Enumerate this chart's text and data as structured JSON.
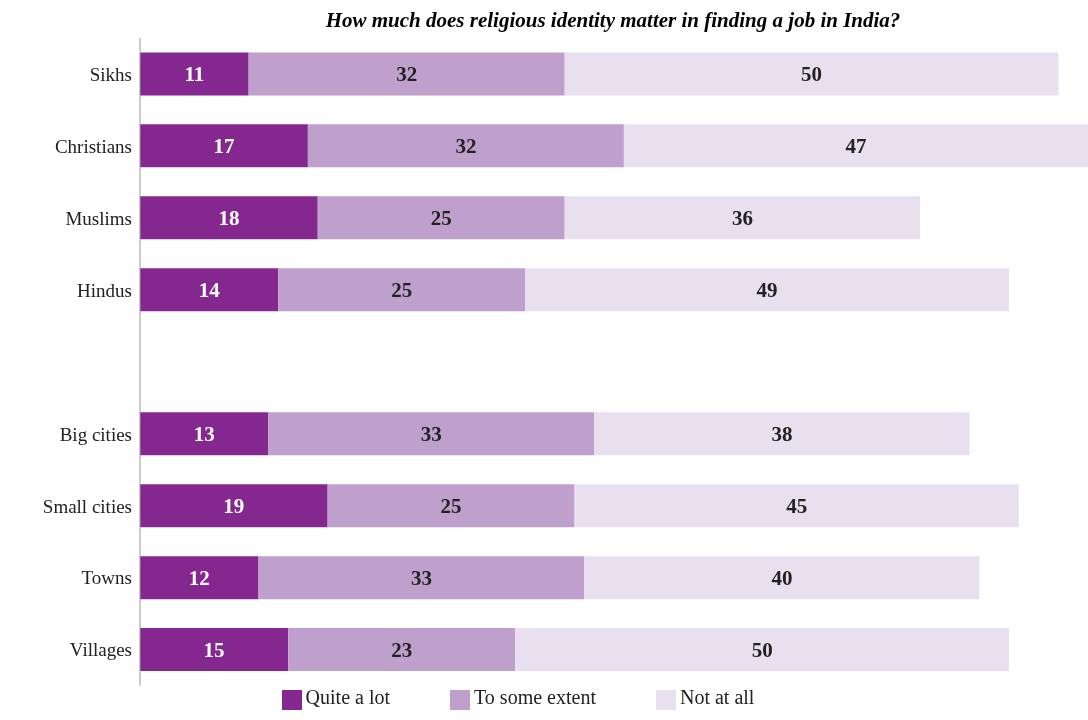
{
  "chart_data": {
    "type": "bar",
    "orientation": "horizontal",
    "stacked": true,
    "title": "How much does religious identity matter in finding a job in India?",
    "categories": [
      "Sikhs",
      "Christians",
      "Muslims",
      "Hindus",
      null,
      "Big cities",
      "Small cities",
      "Towns",
      "Villages"
    ],
    "series": [
      {
        "name": "Quite a lot",
        "color": "#84288f",
        "values": [
          11,
          17,
          18,
          14,
          null,
          13,
          19,
          12,
          15
        ]
      },
      {
        "name": "To some extent",
        "color": "#bfa0cc",
        "values": [
          32,
          32,
          25,
          25,
          null,
          33,
          25,
          33,
          23
        ]
      },
      {
        "name": "Not at all",
        "color": "#e8e0ef",
        "values": [
          50,
          47,
          36,
          49,
          null,
          38,
          45,
          40,
          50
        ]
      }
    ],
    "data_labels": true,
    "legend": "bottom",
    "tick_labels": "y"
  }
}
